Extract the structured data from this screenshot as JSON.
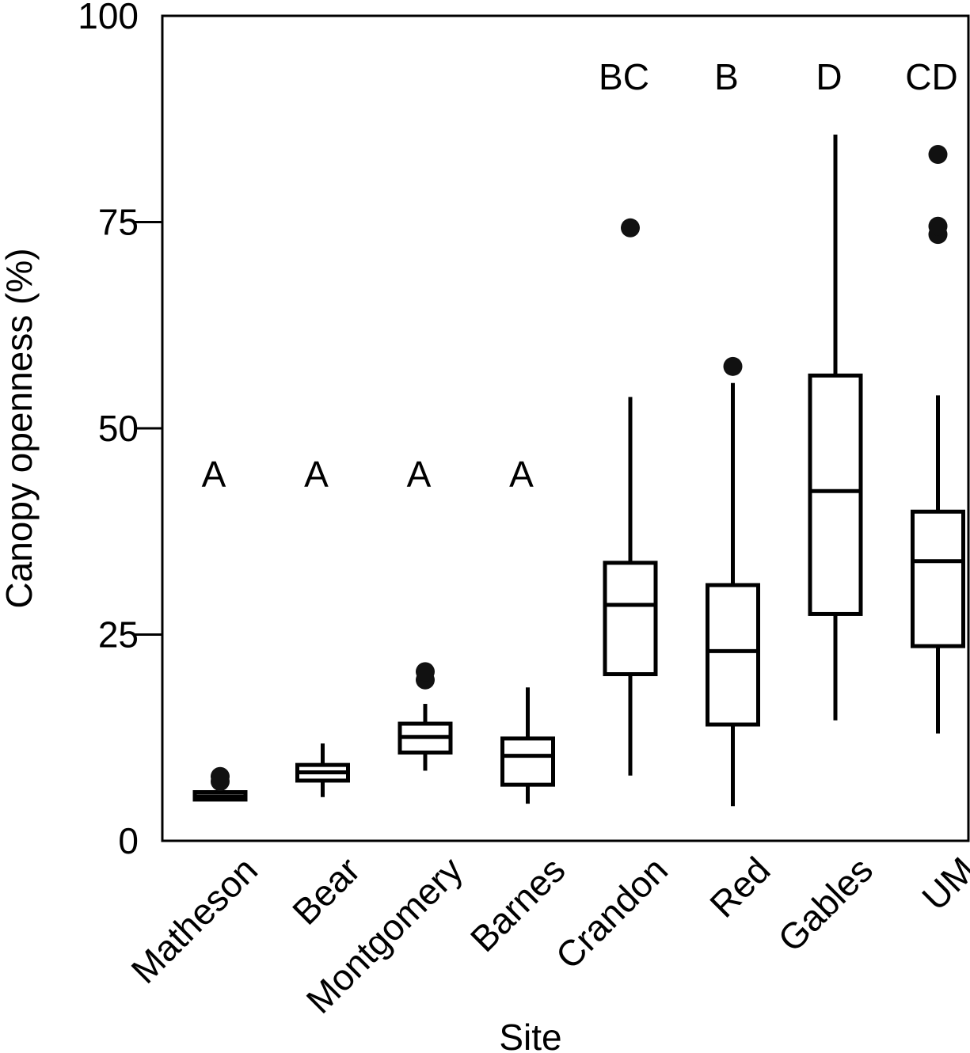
{
  "chart_data": {
    "type": "box",
    "xlabel": "Site",
    "ylabel": "Canopy openness (%)",
    "ylim": [
      0,
      100
    ],
    "yticks": [
      0,
      25,
      50,
      75,
      100
    ],
    "grid": false,
    "legend": "none",
    "categories": [
      "Matheson",
      "Bear",
      "Montgomery",
      "Barnes",
      "Crandon",
      "Red",
      "Gables",
      "UM"
    ],
    "boxes": [
      {
        "site": "Matheson",
        "group": "A",
        "whisker_low": 4.8,
        "q1": 5.0,
        "median": 5.4,
        "q3": 5.9,
        "whisker_high": 6.2,
        "outliers": [
          7.2,
          7.8
        ]
      },
      {
        "site": "Bear",
        "group": "A",
        "whisker_low": 5.3,
        "q1": 7.3,
        "median": 8.3,
        "q3": 9.2,
        "whisker_high": 11.8,
        "outliers": []
      },
      {
        "site": "Montgomery",
        "group": "A",
        "whisker_low": 8.5,
        "q1": 10.7,
        "median": 12.6,
        "q3": 14.2,
        "whisker_high": 16.6,
        "outliers": [
          19.5,
          20.5
        ]
      },
      {
        "site": "Barnes",
        "group": "A",
        "whisker_low": 4.5,
        "q1": 6.8,
        "median": 10.3,
        "q3": 12.4,
        "whisker_high": 18.6,
        "outliers": []
      },
      {
        "site": "Crandon",
        "group": "BC",
        "whisker_low": 7.9,
        "q1": 20.2,
        "median": 28.6,
        "q3": 33.7,
        "whisker_high": 53.8,
        "outliers": [
          74.3
        ]
      },
      {
        "site": "Red",
        "group": "B",
        "whisker_low": 4.2,
        "q1": 14.1,
        "median": 23.0,
        "q3": 31.0,
        "whisker_high": 55.5,
        "outliers": [
          57.5
        ]
      },
      {
        "site": "Gables",
        "group": "D",
        "whisker_low": 14.6,
        "q1": 27.5,
        "median": 42.4,
        "q3": 56.4,
        "whisker_high": 85.6,
        "outliers": []
      },
      {
        "site": "UM",
        "group": "CD",
        "whisker_low": 13.0,
        "q1": 23.6,
        "median": 33.9,
        "q3": 39.9,
        "whisker_high": 54.0,
        "outliers": [
          73.5,
          74.5,
          83.2
        ]
      }
    ]
  }
}
